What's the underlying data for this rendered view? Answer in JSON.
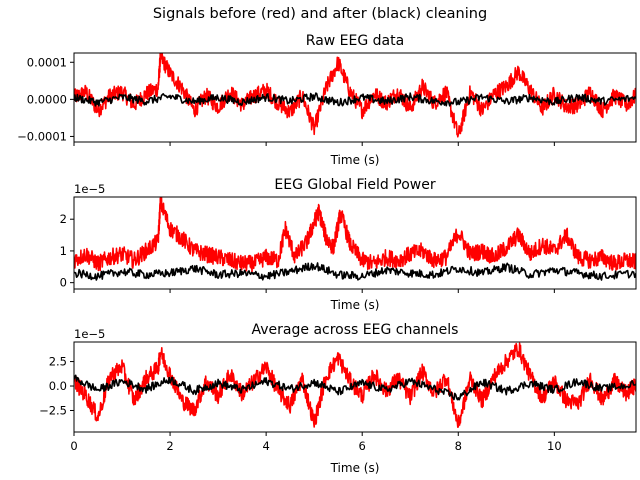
{
  "figure": {
    "suptitle": "Signals before (red) and after (black) cleaning"
  },
  "chart_data": [
    {
      "type": "line",
      "title": "Raw EEG data",
      "xlabel": "Time (s)",
      "ylabel": "",
      "xlim": [
        0,
        11.7
      ],
      "ylim": [
        -0.000115,
        0.000125
      ],
      "yticks": [
        -0.0001,
        0,
        0.0001
      ],
      "ytick_labels": [
        "−0.0001",
        "0.0000",
        "0.0001"
      ],
      "xticks": [
        0,
        2,
        4,
        6,
        8,
        10
      ],
      "xtick_labels": [
        "",
        "",
        "",
        "",
        "",
        ""
      ],
      "offset_text": "",
      "grid": false,
      "series": [
        {
          "color": "#ff0000",
          "x": [
            0,
            0.25,
            0.5,
            0.75,
            1.0,
            1.25,
            1.5,
            1.75,
            1.8,
            2.0,
            2.25,
            2.5,
            2.75,
            3.0,
            3.25,
            3.5,
            3.75,
            4.0,
            4.25,
            4.5,
            4.75,
            5.0,
            5.25,
            5.5,
            5.75,
            6.0,
            6.25,
            6.5,
            6.75,
            7.0,
            7.25,
            7.5,
            7.75,
            8.0,
            8.25,
            8.5,
            8.75,
            9.0,
            9.25,
            9.5,
            9.75,
            10.0,
            10.25,
            10.5,
            10.75,
            11.0,
            11.25,
            11.5,
            11.7
          ],
          "y": [
            5e-06,
            2e-05,
            -3e-05,
            1e-05,
            2e-05,
            -1.5e-05,
            1.5e-05,
            3e-05,
            0.000115,
            7e-05,
            3e-05,
            -3e-05,
            1e-05,
            -2e-05,
            2e-05,
            -1.5e-05,
            1e-05,
            2.5e-05,
            -1e-05,
            -3.5e-05,
            1e-05,
            -8e-05,
            3e-05,
            0.0001,
            2e-05,
            -3e-05,
            1.5e-05,
            -1e-05,
            2e-05,
            -2.5e-05,
            3.5e-05,
            -1e-05,
            2e-05,
            -0.0001,
            2e-05,
            -3e-05,
            1.5e-05,
            3.5e-05,
            7.5e-05,
            2.5e-05,
            -2.5e-05,
            1.5e-05,
            -2e-05,
            -1.5e-05,
            2e-05,
            -3e-05,
            1e-05,
            -1.5e-05,
            1e-05
          ]
        },
        {
          "color": "#000000",
          "x": [
            0,
            0.5,
            1.0,
            1.5,
            2.0,
            2.5,
            3.0,
            3.5,
            4.0,
            4.5,
            5.0,
            5.5,
            6.0,
            6.5,
            7.0,
            7.5,
            8.0,
            8.5,
            9.0,
            9.5,
            10.0,
            10.5,
            11.0,
            11.7
          ],
          "y": [
            5e-06,
            -8e-06,
            6e-06,
            -5e-06,
            8e-06,
            -6e-06,
            5e-06,
            -7e-06,
            6e-06,
            -5e-06,
            8e-06,
            -9e-06,
            5e-06,
            -6e-06,
            7e-06,
            -5e-06,
            -8e-06,
            6e-06,
            -6e-06,
            5e-06,
            -7e-06,
            6e-06,
            -5e-06,
            4e-06
          ]
        }
      ]
    },
    {
      "type": "line",
      "title": "EEG Global Field Power",
      "xlabel": "Time (s)",
      "ylabel": "",
      "xlim": [
        0,
        11.7
      ],
      "ylim": [
        -0.2,
        2.7
      ],
      "yticks": [
        0,
        1,
        2
      ],
      "ytick_labels": [
        "0",
        "1",
        "2"
      ],
      "xticks": [
        0,
        2,
        4,
        6,
        8,
        10
      ],
      "xtick_labels": [
        "",
        "",
        "",
        "",
        "",
        ""
      ],
      "offset_text": "1e−5",
      "grid": false,
      "series": [
        {
          "color": "#ff0000",
          "x": [
            0,
            0.25,
            0.5,
            0.75,
            1.0,
            1.25,
            1.5,
            1.75,
            1.8,
            2.0,
            2.25,
            2.5,
            2.75,
            3.0,
            3.25,
            3.5,
            3.75,
            4.0,
            4.25,
            4.4,
            4.6,
            4.85,
            5.0,
            5.1,
            5.25,
            5.4,
            5.55,
            5.75,
            6.0,
            6.25,
            6.5,
            6.75,
            7.0,
            7.25,
            7.5,
            7.75,
            8.0,
            8.25,
            8.5,
            8.75,
            9.0,
            9.25,
            9.5,
            9.75,
            10.0,
            10.25,
            10.5,
            10.75,
            11.0,
            11.25,
            11.5,
            11.7
          ],
          "y": [
            0.7,
            0.9,
            0.6,
            0.8,
            0.9,
            0.7,
            1.0,
            1.3,
            2.55,
            1.7,
            1.4,
            1.0,
            0.9,
            0.8,
            0.7,
            0.6,
            0.6,
            0.8,
            0.7,
            1.7,
            0.8,
            1.3,
            1.9,
            2.25,
            1.4,
            1.1,
            2.2,
            1.2,
            0.7,
            0.6,
            0.8,
            0.7,
            0.9,
            1.0,
            0.7,
            0.8,
            1.6,
            0.9,
            1.0,
            0.8,
            1.1,
            1.5,
            0.9,
            1.2,
            1.0,
            1.5,
            0.8,
            0.7,
            0.8,
            0.6,
            0.7,
            0.65
          ]
        },
        {
          "color": "#000000",
          "x": [
            0,
            0.5,
            1.0,
            1.5,
            2.0,
            2.5,
            3.0,
            3.5,
            4.0,
            4.5,
            5.0,
            5.5,
            6.0,
            6.5,
            7.0,
            7.5,
            8.0,
            8.5,
            9.0,
            9.5,
            10.0,
            10.5,
            11.0,
            11.7
          ],
          "y": [
            0.3,
            0.2,
            0.35,
            0.25,
            0.3,
            0.45,
            0.25,
            0.3,
            0.2,
            0.35,
            0.55,
            0.25,
            0.2,
            0.4,
            0.3,
            0.25,
            0.45,
            0.3,
            0.5,
            0.25,
            0.4,
            0.3,
            0.2,
            0.3
          ]
        }
      ]
    },
    {
      "type": "line",
      "title": "Average across EEG channels",
      "xlabel": "Time (s)",
      "ylabel": "",
      "xlim": [
        0,
        11.7
      ],
      "ylim": [
        -4.7,
        4.5
      ],
      "yticks": [
        -2.5,
        0,
        2.5
      ],
      "ytick_labels": [
        "−2.5",
        "0.0",
        "2.5"
      ],
      "xticks": [
        0,
        2,
        4,
        6,
        8,
        10
      ],
      "xtick_labels": [
        "0",
        "2",
        "4",
        "6",
        "8",
        "10"
      ],
      "offset_text": "1e−5",
      "grid": false,
      "series": [
        {
          "color": "#ff0000",
          "x": [
            0,
            0.25,
            0.5,
            0.75,
            1.0,
            1.25,
            1.5,
            1.75,
            1.8,
            2.0,
            2.25,
            2.5,
            2.75,
            3.0,
            3.25,
            3.5,
            3.75,
            4.0,
            4.25,
            4.5,
            4.75,
            5.0,
            5.25,
            5.5,
            5.75,
            6.0,
            6.25,
            6.5,
            6.75,
            7.0,
            7.25,
            7.5,
            7.75,
            8.0,
            8.25,
            8.5,
            8.75,
            9.0,
            9.25,
            9.5,
            9.75,
            10.0,
            10.25,
            10.5,
            10.75,
            11.0,
            11.25,
            11.5,
            11.7
          ],
          "y": [
            0.5,
            -1.0,
            -3.2,
            1.0,
            2.0,
            -1.5,
            0.8,
            1.8,
            3.5,
            1.2,
            -1.5,
            -2.5,
            0.5,
            -1.0,
            1.2,
            -0.8,
            0.5,
            2.0,
            -0.5,
            -2.0,
            0.8,
            -3.8,
            1.0,
            2.9,
            0.5,
            -1.0,
            1.2,
            -0.5,
            0.8,
            -1.2,
            1.5,
            -0.8,
            1.0,
            -4.0,
            0.8,
            -1.5,
            1.0,
            2.5,
            3.9,
            1.0,
            -1.2,
            0.5,
            -1.5,
            -1.8,
            0.8,
            -1.5,
            0.5,
            -0.8,
            0.2
          ]
        },
        {
          "color": "#000000",
          "x": [
            0,
            0.5,
            1.0,
            1.5,
            2.0,
            2.5,
            3.0,
            3.5,
            4.0,
            4.5,
            5.0,
            5.5,
            6.0,
            6.5,
            7.0,
            7.5,
            8.0,
            8.5,
            9.0,
            9.5,
            10.0,
            10.5,
            11.0,
            11.7
          ],
          "y": [
            0.8,
            -0.4,
            0.5,
            -0.3,
            0.7,
            -0.5,
            0.3,
            -0.4,
            0.5,
            -0.3,
            0.4,
            -0.6,
            0.3,
            -0.4,
            0.5,
            -0.3,
            -1.2,
            0.4,
            -0.5,
            0.3,
            -0.4,
            0.5,
            -0.3,
            0.2
          ]
        }
      ]
    }
  ]
}
